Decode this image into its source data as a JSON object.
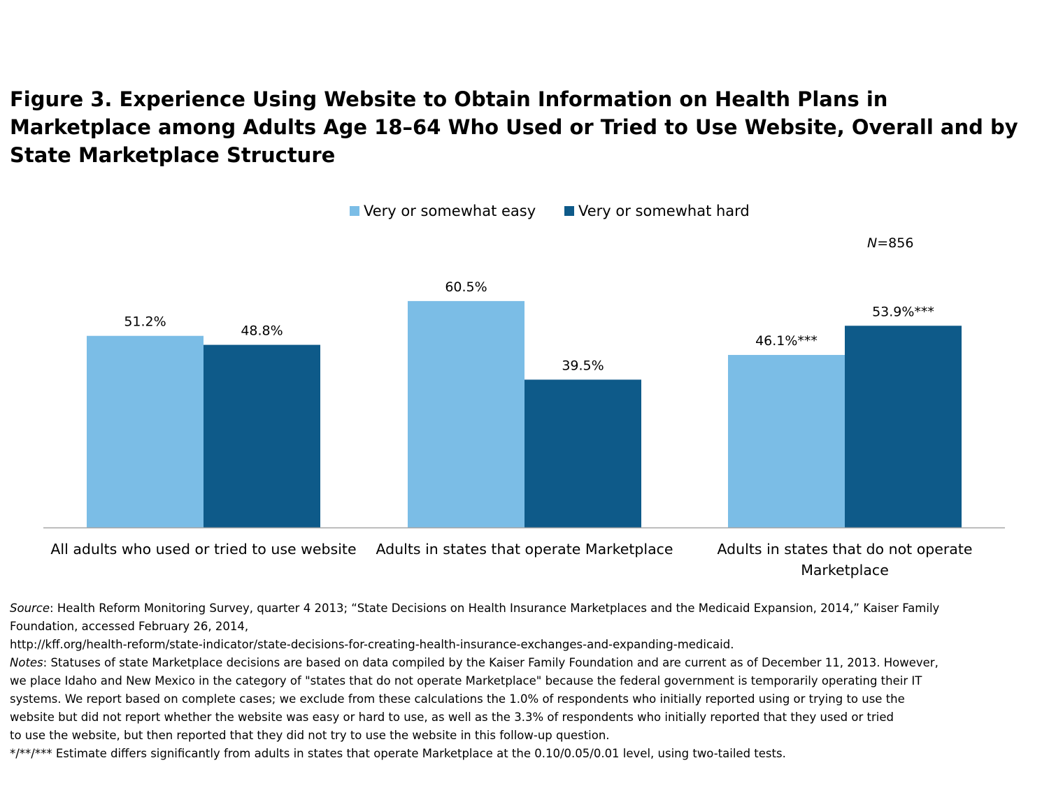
{
  "title": "Figure 3.  Experience Using Website to Obtain Information on Health Plans in Marketplace among Adults Age 18–64 Who Used or Tried to Use Website, Overall and by State Marketplace Structure",
  "n_prefix": "N",
  "n_value": "=856",
  "colors": {
    "easy": "#7bbde6",
    "hard": "#0e5a89",
    "axis": "#a6a6a6"
  },
  "chart_data": {
    "type": "bar",
    "categories": [
      "All adults who used or tried to use website",
      "Adults in states that operate Marketplace",
      "Adults in states that do not operate Marketplace"
    ],
    "category_lines": [
      [
        "All adults who used or tried to use website"
      ],
      [
        "Adults in states that operate Marketplace"
      ],
      [
        "Adults in states that do not operate",
        "Marketplace"
      ]
    ],
    "series": [
      {
        "name": "Very or somewhat easy",
        "values": [
          51.2,
          60.5,
          46.1
        ],
        "labels": [
          "51.2%",
          "60.5%",
          "46.1%***"
        ]
      },
      {
        "name": "Very or somewhat hard",
        "values": [
          48.8,
          39.5,
          53.9
        ],
        "labels": [
          "48.8%",
          "39.5%",
          "53.9%***"
        ]
      }
    ],
    "ylim": [
      0,
      70
    ],
    "xlabel": "",
    "ylabel": "",
    "legend": "top-center",
    "grid": false
  },
  "notes": {
    "source_label": "Source",
    "source_text": ": Health Reform Monitoring Survey, quarter 4 2013; “State Decisions on Health Insurance Marketplaces and the Medicaid Expansion, 2014,” Kaiser Family",
    "source_line2": "Foundation, accessed February 26, 2014,",
    "source_url": "http://kff.org/health-reform/state-indicator/state-decisions-for-creating-health-insurance-exchanges-and-expanding-medicaid.",
    "notes_label": "Notes",
    "notes_line1": ":  Statuses of state Marketplace decisions are based on data compiled by the Kaiser Family Foundation and are current as of December 11, 2013.  However,",
    "notes_line2": "we place Idaho and New Mexico in the category of \"states that do not operate Marketplace\" because the federal government is temporarily operating their IT",
    "notes_line3": "systems.  We report based on complete cases; we exclude from these calculations the 1.0% of respondents who initially reported using or trying to use the",
    "notes_line4": "website but did not report whether the website was easy or hard to use, as well as the 3.3% of respondents who initially reported that they used or tried",
    "notes_line5": "to use the website, but then reported that they did not try to use the website in this follow-up question.",
    "significance": "*/**/*** Estimate differs significantly from adults in states that operate Marketplace at the 0.10/0.05/0.01 level, using two-tailed tests."
  }
}
